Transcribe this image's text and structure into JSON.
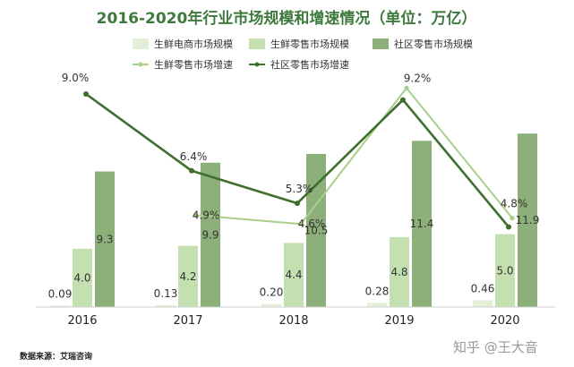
{
  "chart_data": {
    "type": "bar",
    "title": "2016-2020年行业市场规模和增速情况（单位：万亿）",
    "categories": [
      "2016",
      "2017",
      "2018",
      "2019",
      "2020"
    ],
    "series": [
      {
        "name": "生鲜电商市场规模",
        "kind": "bar",
        "color": "#e3efd9",
        "values": [
          0.09,
          0.13,
          0.2,
          0.28,
          0.46
        ],
        "labels": [
          "0.09",
          "0.13",
          "0.20",
          "0.28",
          "0.46"
        ]
      },
      {
        "name": "生鲜零售市场规模",
        "kind": "bar",
        "color": "#c5e0b0",
        "values": [
          4.0,
          4.2,
          4.4,
          4.8,
          5.0
        ],
        "labels": [
          "4.0",
          "4.2",
          "4.4",
          "4.8",
          "5.0"
        ]
      },
      {
        "name": "社区零售市场规模",
        "kind": "bar",
        "color": "#8daf7a",
        "values": [
          9.3,
          9.9,
          10.5,
          11.4,
          11.9
        ],
        "labels": [
          "9.3",
          "9.9",
          "10.5",
          "11.4",
          "11.9"
        ]
      },
      {
        "name": "生鲜零售市场增速",
        "kind": "line",
        "color": "#a8d08a",
        "values": [
          null,
          4.9,
          4.6,
          9.2,
          4.8
        ],
        "labels": [
          "",
          "4.9%",
          "4.6%",
          "9.2%",
          "4.8%"
        ]
      },
      {
        "name": "社区零售市场增速",
        "kind": "line",
        "color": "#3f6f2e",
        "values": [
          9.0,
          6.4,
          5.3,
          8.8,
          4.5
        ],
        "labels": [
          "9.0%",
          "6.4%",
          "5.3%",
          "",
          ""
        ]
      }
    ],
    "bar_ylim": [
      0,
      14
    ],
    "line_ylim": [
      0,
      12
    ]
  },
  "source": "数据来源：艾瑞咨询",
  "watermark": "知乎 @王大音"
}
